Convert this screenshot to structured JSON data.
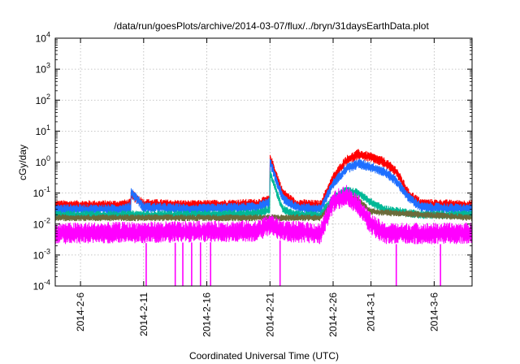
{
  "chart_data": {
    "type": "line",
    "title": "/data/run/goesPlots/archive/2014-03-07/flux/../bryn/31daysEarthData.plot",
    "xlabel": "Coordinated Universal Time (UTC)",
    "ylabel": "cGy/day",
    "x_range": [
      "2014-02-04",
      "2014-03-09"
    ],
    "x_ticks": [
      "2014-2-6",
      "2014-2-11",
      "2014-2-16",
      "2014-2-21",
      "2014-2-26",
      "2014-3-1",
      "2014-3-6"
    ],
    "y_scale": "log",
    "y_range": [
      0.0001,
      10000
    ],
    "y_ticks": [
      {
        "value": 0.0001,
        "base": "10",
        "exp": "-4"
      },
      {
        "value": 0.001,
        "base": "10",
        "exp": "-3"
      },
      {
        "value": 0.01,
        "base": "10",
        "exp": "-2"
      },
      {
        "value": 0.1,
        "base": "10",
        "exp": "-1"
      },
      {
        "value": 1,
        "base": "10",
        "exp": "0"
      },
      {
        "value": 10,
        "base": "10",
        "exp": "1"
      },
      {
        "value": 100,
        "base": "10",
        "exp": "2"
      },
      {
        "value": 1000,
        "base": "10",
        "exp": "3"
      },
      {
        "value": 10000,
        "base": "10",
        "exp": "4"
      }
    ],
    "grid": true,
    "legend": "none",
    "series": [
      {
        "color": "#ff0000",
        "values": [
          [
            "2014-02-04",
            0.04
          ],
          [
            "2014-02-09",
            0.04
          ],
          [
            "2014-02-10",
            0.045
          ],
          [
            "2014-02-10",
            0.09
          ],
          [
            "2014-02-11",
            0.045
          ],
          [
            "2014-02-15",
            0.04
          ],
          [
            "2014-02-20",
            0.045
          ],
          [
            "2014-02-21",
            0.06
          ],
          [
            "2014-02-21",
            1.4
          ],
          [
            "2014-02-22",
            0.1
          ],
          [
            "2014-02-23",
            0.045
          ],
          [
            "2014-02-25",
            0.04
          ],
          [
            "2014-02-26",
            0.3
          ],
          [
            "2014-02-27",
            1.1
          ],
          [
            "2014-02-28",
            1.8
          ],
          [
            "2014-03-01",
            1.4
          ],
          [
            "2014-03-02",
            1.0
          ],
          [
            "2014-03-03",
            0.5
          ],
          [
            "2014-03-04",
            0.09
          ],
          [
            "2014-03-05",
            0.045
          ],
          [
            "2014-03-09",
            0.04
          ]
        ]
      },
      {
        "color": "#1e6fff",
        "values": [
          [
            "2014-02-04",
            0.03
          ],
          [
            "2014-02-09",
            0.03
          ],
          [
            "2014-02-10",
            0.035
          ],
          [
            "2014-02-10",
            0.11
          ],
          [
            "2014-02-11",
            0.035
          ],
          [
            "2014-02-15",
            0.03
          ],
          [
            "2014-02-20",
            0.035
          ],
          [
            "2014-02-21",
            0.05
          ],
          [
            "2014-02-21",
            1.0
          ],
          [
            "2014-02-22",
            0.07
          ],
          [
            "2014-02-23",
            0.035
          ],
          [
            "2014-02-25",
            0.03
          ],
          [
            "2014-02-26",
            0.2
          ],
          [
            "2014-02-27",
            0.6
          ],
          [
            "2014-02-28",
            0.9
          ],
          [
            "2014-03-01",
            0.7
          ],
          [
            "2014-03-02",
            0.5
          ],
          [
            "2014-03-03",
            0.25
          ],
          [
            "2014-03-04",
            0.07
          ],
          [
            "2014-03-05",
            0.035
          ],
          [
            "2014-03-09",
            0.03
          ]
        ]
      },
      {
        "color": "#00b896",
        "values": [
          [
            "2014-02-04",
            0.02
          ],
          [
            "2014-02-15",
            0.02
          ],
          [
            "2014-02-20",
            0.022
          ],
          [
            "2014-02-21",
            0.03
          ],
          [
            "2014-02-21",
            0.45
          ],
          [
            "2014-02-22",
            0.03
          ],
          [
            "2014-02-23",
            0.02
          ],
          [
            "2014-02-25",
            0.02
          ],
          [
            "2014-02-26",
            0.07
          ],
          [
            "2014-02-27",
            0.12
          ],
          [
            "2014-02-28",
            0.1
          ],
          [
            "2014-03-01",
            0.05
          ],
          [
            "2014-03-02",
            0.03
          ],
          [
            "2014-03-05",
            0.02
          ],
          [
            "2014-03-09",
            0.02
          ]
        ]
      },
      {
        "color": "#6b6b3a",
        "values": [
          [
            "2014-02-04",
            0.016
          ],
          [
            "2014-02-25",
            0.016
          ],
          [
            "2014-02-26",
            0.05
          ],
          [
            "2014-02-27",
            0.08
          ],
          [
            "2014-02-28",
            0.06
          ],
          [
            "2014-03-01",
            0.025
          ],
          [
            "2014-03-09",
            0.016
          ]
        ]
      },
      {
        "color": "#ff00ff",
        "values": [
          [
            "2014-02-04",
            0.005
          ],
          [
            "2014-02-20",
            0.006
          ],
          [
            "2014-02-21",
            0.01
          ],
          [
            "2014-02-22",
            0.006
          ],
          [
            "2014-02-25",
            0.005
          ],
          [
            "2014-02-26",
            0.05
          ],
          [
            "2014-02-27",
            0.09
          ],
          [
            "2014-02-28",
            0.04
          ],
          [
            "2014-03-01",
            0.01
          ],
          [
            "2014-03-02",
            0.005
          ],
          [
            "2014-03-09",
            0.005
          ]
        ]
      }
    ]
  }
}
